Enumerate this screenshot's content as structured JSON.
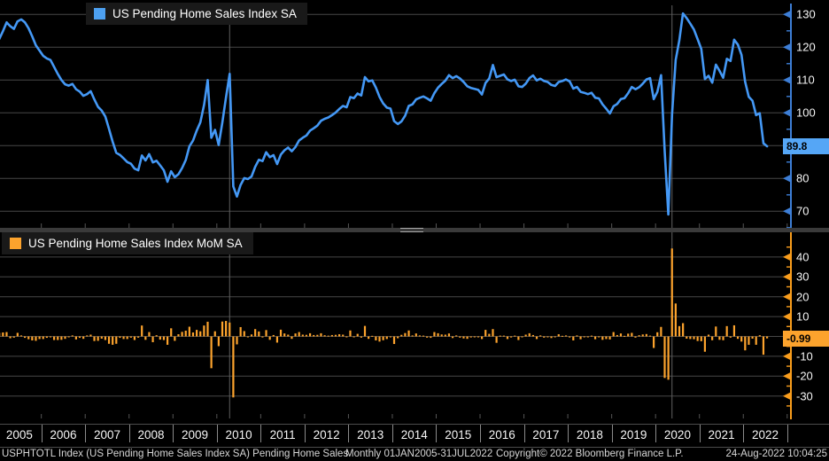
{
  "colors": {
    "index_line": "#4498f5",
    "index_swatch": "#4da0f0",
    "index_axis": "#3d7ed6",
    "index_tag_bg": "#55a6f6",
    "mom_bar": "#fca32d",
    "mom_axis": "#f99d1c",
    "mom_tag_bg": "#fca32d",
    "grid": "#474747",
    "event_line": "#606060",
    "minor_tick": "#555555"
  },
  "top_panel": {
    "legend_label": "US Pending Home Sales Index SA",
    "last_value_label": "89.8"
  },
  "bottom_panel": {
    "legend_label": "US Pending Home Sales Index MoM SA",
    "last_value_label": "-0.99"
  },
  "x_axis": {
    "years": [
      "2005",
      "2006",
      "2007",
      "2008",
      "2009",
      "2010",
      "2011",
      "2012",
      "2013",
      "2014",
      "2015",
      "2016",
      "2017",
      "2018",
      "2019",
      "2020",
      "2021",
      "2022"
    ]
  },
  "status_bar": {
    "left": "USPHTOTL Index (US Pending Home Sales Index SA) Pending Home Sales",
    "mid": "Monthly 01JAN2005-31JUL2022",
    "copyright": "Copyright© 2022 Bloomberg Finance L.P.",
    "datetime": "24-Aug-2022 10:04:25"
  },
  "chart_data": [
    {
      "type": "line",
      "name": "US Pending Home Sales Index SA",
      "frequency": "Monthly",
      "x_start": "2005-01",
      "x_end": "2022-07",
      "ylim": [
        65,
        133
      ],
      "yticks": [
        130,
        120,
        110,
        100,
        80,
        70
      ],
      "grid_yticks": [
        130,
        120,
        110,
        100,
        90,
        80,
        70
      ],
      "minor_yticks": [
        125,
        115,
        105,
        95,
        85,
        75,
        65
      ],
      "last_value": 89.8,
      "legend_position": "top-left",
      "grid": "horizontal",
      "values": [
        122.5,
        124.9,
        127.6,
        126.4,
        125.6,
        127.9,
        128.5,
        127.6,
        125.8,
        123.3,
        120.6,
        119.0,
        117.4,
        116.6,
        116.1,
        114.0,
        111.9,
        110.0,
        108.7,
        108.3,
        108.8,
        107.2,
        106.5,
        105.2,
        105.7,
        106.6,
        104.1,
        101.8,
        100.7,
        98.9,
        95.2,
        91.2,
        87.8,
        87.2,
        86.1,
        85.0,
        84.5,
        83.0,
        82.5,
        87.0,
        85.5,
        87.4,
        84.9,
        85.4,
        84.0,
        82.5,
        79.0,
        82.2,
        80.4,
        81.3,
        83.2,
        85.6,
        89.8,
        91.6,
        94.6,
        97.1,
        102.4,
        110.0,
        92.4,
        94.8,
        90.2,
        97.0,
        104.6,
        111.9,
        77.6,
        74.5,
        78.0,
        80.1,
        79.8,
        80.6,
        83.6,
        85.7,
        85.3,
        88.0,
        86.5,
        87.1,
        84.4,
        87.3,
        88.6,
        89.4,
        88.3,
        89.6,
        91.6,
        92.4,
        93.1,
        94.6,
        95.3,
        96.1,
        97.6,
        98.2,
        98.6,
        99.3,
        100.1,
        101.2,
        102.1,
        101.7,
        104.8,
        104.5,
        105.9,
        105.3,
        110.9,
        109.6,
        109.9,
        107.7,
        104.9,
        102.9,
        101.6,
        101.3,
        97.5,
        96.6,
        97.4,
        99.1,
        102.1,
        102.6,
        104.1,
        104.6,
        105.0,
        104.4,
        103.7,
        106.0,
        107.7,
        108.8,
        109.8,
        111.5,
        110.6,
        111.2,
        110.5,
        109.4,
        108.1,
        107.6,
        107.3,
        107.0,
        105.6,
        109.1,
        110.5,
        114.6,
        110.9,
        111.3,
        111.7,
        110.2,
        109.7,
        110.1,
        108.1,
        107.9,
        108.9,
        110.6,
        111.4,
        109.9,
        110.4,
        109.7,
        109.4,
        108.5,
        108.2,
        109.4,
        109.7,
        110.2,
        109.6,
        107.4,
        107.9,
        106.4,
        106.1,
        105.7,
        106.1,
        104.6,
        104.4,
        102.6,
        101.3,
        99.8,
        102.0,
        102.7,
        104.2,
        104.5,
        106.0,
        107.9,
        107.2,
        107.8,
        108.9,
        110.2,
        110.6,
        104.2,
        106.4,
        111.5,
        88.2,
        69.0,
        99.6,
        116.1,
        122.1,
        130.3,
        128.9,
        127.2,
        125.4,
        122.5,
        119.5,
        110.3,
        111.3,
        109.2,
        114.7,
        112.8,
        110.7,
        116.5,
        115.8,
        122.3,
        120.8,
        117.7,
        109.5,
        104.9,
        103.7,
        99.3,
        99.9,
        90.7,
        89.8
      ],
      "event_line_months": [
        63,
        184
      ]
    },
    {
      "type": "bar",
      "name": "US Pending Home Sales Index MoM SA",
      "frequency": "Monthly",
      "x_start": "2005-01",
      "x_end": "2022-07",
      "ylim": [
        -37,
        46
      ],
      "yticks": [
        40,
        30,
        20,
        10,
        -10,
        -20,
        -30
      ],
      "grid_yticks": [
        40,
        30,
        20,
        10,
        0,
        -10,
        -20,
        -30
      ],
      "minor_yticks": [
        45,
        35,
        25,
        15,
        5,
        -5,
        -15,
        -25,
        -35
      ],
      "last_value": -0.99,
      "legend_position": "top-left",
      "grid": "horizontal",
      "values": [
        1.8,
        2.0,
        2.2,
        -0.9,
        -0.6,
        1.8,
        0.5,
        -0.7,
        -1.4,
        -2.0,
        -2.2,
        -1.3,
        -1.3,
        -0.7,
        -0.4,
        -1.8,
        -1.8,
        -1.7,
        -1.2,
        -0.4,
        0.5,
        -1.5,
        -0.7,
        -1.2,
        0.5,
        0.9,
        -2.3,
        -2.2,
        -1.1,
        -1.8,
        -3.7,
        -4.2,
        -3.7,
        -0.7,
        -1.3,
        -1.3,
        -0.6,
        -1.8,
        -0.6,
        5.5,
        -1.7,
        2.2,
        -2.9,
        0.6,
        -1.6,
        -1.8,
        -4.2,
        4.1,
        -2.2,
        1.1,
        2.3,
        2.9,
        4.9,
        2.0,
        3.3,
        2.6,
        5.5,
        7.4,
        -16.0,
        2.6,
        -4.9,
        7.5,
        7.8,
        7.0,
        -30.7,
        -4.0,
        4.7,
        2.7,
        -0.4,
        1.0,
        3.7,
        2.5,
        -0.5,
        3.2,
        -1.7,
        0.7,
        -3.1,
        3.4,
        1.5,
        0.9,
        -1.2,
        1.5,
        2.2,
        0.9,
        0.8,
        1.6,
        0.7,
        0.8,
        1.6,
        0.6,
        0.4,
        0.7,
        0.8,
        1.1,
        0.9,
        -0.4,
        3.0,
        -0.3,
        1.3,
        -0.6,
        5.3,
        -1.2,
        0.3,
        -2.0,
        -2.6,
        -1.9,
        -1.3,
        -0.3,
        -3.8,
        -0.9,
        0.8,
        1.7,
        3.0,
        0.5,
        1.5,
        0.5,
        0.4,
        -0.6,
        -0.7,
        2.2,
        1.6,
        1.0,
        0.9,
        1.5,
        -0.8,
        0.5,
        -0.6,
        -1.0,
        -1.2,
        -0.5,
        -0.3,
        -0.3,
        -1.3,
        3.3,
        1.3,
        3.7,
        -3.2,
        0.4,
        0.4,
        -1.3,
        -0.5,
        0.4,
        -1.8,
        -0.2,
        0.9,
        1.6,
        0.7,
        -1.3,
        0.5,
        -0.6,
        -0.3,
        -0.8,
        -0.3,
        1.1,
        0.3,
        0.5,
        -0.5,
        -2.0,
        0.5,
        -1.4,
        -0.3,
        -0.4,
        0.4,
        -1.4,
        -0.2,
        -1.7,
        -1.3,
        -1.5,
        2.2,
        0.7,
        1.5,
        0.3,
        1.4,
        1.8,
        -0.6,
        0.6,
        1.0,
        1.2,
        0.4,
        -5.8,
        2.1,
        4.8,
        -20.9,
        -21.8,
        44.3,
        16.6,
        5.2,
        6.7,
        -1.1,
        -1.3,
        -1.4,
        -2.3,
        -2.4,
        -7.7,
        0.9,
        -1.9,
        5.0,
        -1.7,
        -1.9,
        5.2,
        -0.6,
        5.6,
        -1.2,
        -2.6,
        -7.0,
        -4.2,
        -1.1,
        -4.2,
        0.6,
        -9.2,
        -0.99
      ]
    }
  ]
}
